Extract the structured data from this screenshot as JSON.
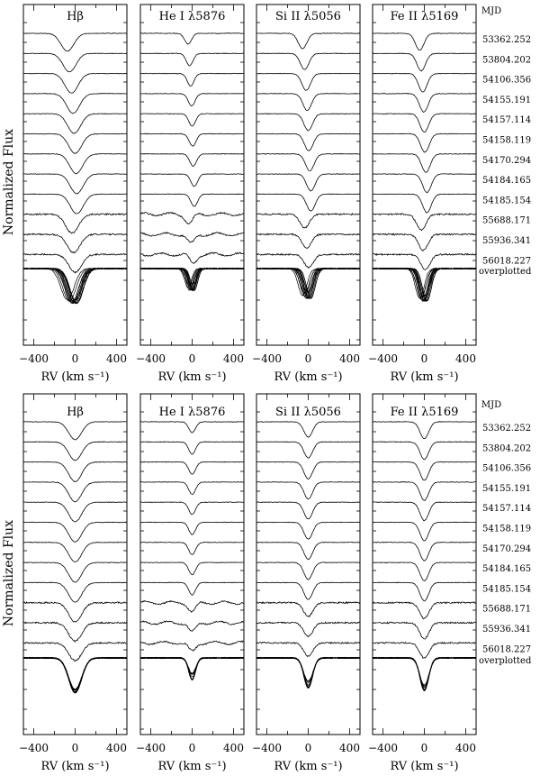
{
  "chart_data": [
    {
      "type": "line",
      "ylabel": "Normalized Flux",
      "mjd_header": "MJD",
      "mjd_labels": [
        "53362.252",
        "53804.202",
        "54106.356",
        "54155.191",
        "54157.114",
        "54158.119",
        "54170.294",
        "54184.165",
        "54185.154",
        "55688.171",
        "55936.341",
        "56018.227",
        "overplotted"
      ],
      "xlim": [
        -500,
        500
      ],
      "xticks": [
        -400,
        0,
        400
      ],
      "xtick_labels": [
        "−400",
        "0",
        "400"
      ],
      "panels": [
        {
          "title": "Hβ",
          "xlabel": "RV (km s⁻¹)",
          "line": "Hbeta",
          "series": [
            {
              "center": -75,
              "depth": 0.58,
              "width": 105
            },
            {
              "center": -55,
              "depth": 0.6,
              "width": 105
            },
            {
              "center": -35,
              "depth": 0.64,
              "width": 105
            },
            {
              "center": -20,
              "depth": 0.64,
              "width": 105
            },
            {
              "center": -10,
              "depth": 0.64,
              "width": 105
            },
            {
              "center": 0,
              "depth": 0.64,
              "width": 105
            },
            {
              "center": 10,
              "depth": 0.64,
              "width": 105
            },
            {
              "center": 15,
              "depth": 0.64,
              "width": 105
            },
            {
              "center": 15,
              "depth": 0.64,
              "width": 105
            },
            {
              "center": -30,
              "depth": 0.62,
              "width": 105
            },
            {
              "center": -15,
              "depth": 0.6,
              "width": 105
            },
            {
              "center": 0,
              "depth": 0.58,
              "width": 105
            }
          ]
        },
        {
          "title": "He I λ5876",
          "xlabel": "RV (km s⁻¹)",
          "line": "HeI",
          "series": [
            {
              "center": -40,
              "depth": 0.35,
              "width": 55
            },
            {
              "center": -25,
              "depth": 0.4,
              "width": 55
            },
            {
              "center": -15,
              "depth": 0.4,
              "width": 55
            },
            {
              "center": -5,
              "depth": 0.4,
              "width": 55
            },
            {
              "center": 0,
              "depth": 0.4,
              "width": 55
            },
            {
              "center": 5,
              "depth": 0.4,
              "width": 55
            },
            {
              "center": 10,
              "depth": 0.4,
              "width": 55
            },
            {
              "center": 20,
              "depth": 0.4,
              "width": 55
            },
            {
              "center": 20,
              "depth": 0.4,
              "width": 55
            },
            {
              "center": -30,
              "depth": 0.3,
              "width": 60
            },
            {
              "center": -10,
              "depth": 0.3,
              "width": 60
            },
            {
              "center": 10,
              "depth": 0.28,
              "width": 60
            }
          ]
        },
        {
          "title": "Si II λ5056",
          "xlabel": "RV (km s⁻¹)",
          "line": "SiII",
          "series": [
            {
              "center": -55,
              "depth": 0.5,
              "width": 70
            },
            {
              "center": -35,
              "depth": 0.52,
              "width": 70
            },
            {
              "center": -20,
              "depth": 0.55,
              "width": 70
            },
            {
              "center": -10,
              "depth": 0.55,
              "width": 70
            },
            {
              "center": 0,
              "depth": 0.55,
              "width": 70
            },
            {
              "center": 5,
              "depth": 0.55,
              "width": 70
            },
            {
              "center": 15,
              "depth": 0.55,
              "width": 70
            },
            {
              "center": 25,
              "depth": 0.55,
              "width": 70
            },
            {
              "center": 25,
              "depth": 0.55,
              "width": 70
            },
            {
              "center": -35,
              "depth": 0.45,
              "width": 75
            },
            {
              "center": -15,
              "depth": 0.45,
              "width": 75
            },
            {
              "center": 5,
              "depth": 0.43,
              "width": 75
            }
          ]
        },
        {
          "title": "Fe II λ5169",
          "xlabel": "RV (km s⁻¹)",
          "line": "FeII",
          "series": [
            {
              "center": -45,
              "depth": 0.55,
              "width": 70
            },
            {
              "center": -30,
              "depth": 0.57,
              "width": 70
            },
            {
              "center": -15,
              "depth": 0.6,
              "width": 70
            },
            {
              "center": -5,
              "depth": 0.6,
              "width": 70
            },
            {
              "center": 0,
              "depth": 0.6,
              "width": 70
            },
            {
              "center": 5,
              "depth": 0.6,
              "width": 70
            },
            {
              "center": 15,
              "depth": 0.6,
              "width": 70
            },
            {
              "center": 25,
              "depth": 0.6,
              "width": 70
            },
            {
              "center": 25,
              "depth": 0.6,
              "width": 70
            },
            {
              "center": -30,
              "depth": 0.52,
              "width": 75
            },
            {
              "center": -10,
              "depth": 0.52,
              "width": 75
            },
            {
              "center": 10,
              "depth": 0.5,
              "width": 75
            }
          ]
        }
      ]
    },
    {
      "type": "line",
      "ylabel": "Normalized Flux",
      "mjd_header": "MJD",
      "mjd_labels": [
        "53362.252",
        "53804.202",
        "54106.356",
        "54155.191",
        "54157.114",
        "54158.119",
        "54170.294",
        "54184.165",
        "54185.154",
        "55688.171",
        "55936.341",
        "56018.227",
        "overplotted"
      ],
      "xlim": [
        -500,
        500
      ],
      "xticks": [
        -400,
        0,
        400
      ],
      "xtick_labels": [
        "−400",
        "0",
        "400"
      ],
      "panels": [
        {
          "title": "Hβ",
          "xlabel": "RV (km s⁻¹)",
          "line": "Hbeta",
          "series": [
            {
              "center": 0,
              "depth": 0.58,
              "width": 105
            },
            {
              "center": 0,
              "depth": 0.6,
              "width": 105
            },
            {
              "center": 0,
              "depth": 0.64,
              "width": 105
            },
            {
              "center": 0,
              "depth": 0.64,
              "width": 105
            },
            {
              "center": 0,
              "depth": 0.64,
              "width": 105
            },
            {
              "center": 0,
              "depth": 0.64,
              "width": 105
            },
            {
              "center": 0,
              "depth": 0.64,
              "width": 105
            },
            {
              "center": 0,
              "depth": 0.64,
              "width": 105
            },
            {
              "center": 0,
              "depth": 0.64,
              "width": 105
            },
            {
              "center": 0,
              "depth": 0.62,
              "width": 105
            },
            {
              "center": 0,
              "depth": 0.6,
              "width": 105
            },
            {
              "center": 0,
              "depth": 0.58,
              "width": 105
            }
          ]
        },
        {
          "title": "He I λ5876",
          "xlabel": "RV (km s⁻¹)",
          "line": "HeI",
          "series": [
            {
              "center": 0,
              "depth": 0.35,
              "width": 55
            },
            {
              "center": 0,
              "depth": 0.4,
              "width": 55
            },
            {
              "center": 0,
              "depth": 0.4,
              "width": 55
            },
            {
              "center": 0,
              "depth": 0.4,
              "width": 55
            },
            {
              "center": 0,
              "depth": 0.4,
              "width": 55
            },
            {
              "center": 0,
              "depth": 0.4,
              "width": 55
            },
            {
              "center": 0,
              "depth": 0.4,
              "width": 55
            },
            {
              "center": 0,
              "depth": 0.4,
              "width": 55
            },
            {
              "center": 0,
              "depth": 0.4,
              "width": 55
            },
            {
              "center": 0,
              "depth": 0.3,
              "width": 60
            },
            {
              "center": 0,
              "depth": 0.3,
              "width": 60
            },
            {
              "center": 0,
              "depth": 0.28,
              "width": 60
            }
          ]
        },
        {
          "title": "Si II λ5056",
          "xlabel": "RV (km s⁻¹)",
          "line": "SiII",
          "series": [
            {
              "center": 0,
              "depth": 0.5,
              "width": 70
            },
            {
              "center": 0,
              "depth": 0.52,
              "width": 70
            },
            {
              "center": 0,
              "depth": 0.55,
              "width": 70
            },
            {
              "center": 0,
              "depth": 0.55,
              "width": 70
            },
            {
              "center": 0,
              "depth": 0.55,
              "width": 70
            },
            {
              "center": 0,
              "depth": 0.55,
              "width": 70
            },
            {
              "center": 0,
              "depth": 0.55,
              "width": 70
            },
            {
              "center": 0,
              "depth": 0.55,
              "width": 70
            },
            {
              "center": 0,
              "depth": 0.55,
              "width": 70
            },
            {
              "center": 0,
              "depth": 0.45,
              "width": 75
            },
            {
              "center": 0,
              "depth": 0.45,
              "width": 75
            },
            {
              "center": 0,
              "depth": 0.43,
              "width": 75
            }
          ]
        },
        {
          "title": "Fe II λ5169",
          "xlabel": "RV (km s⁻¹)",
          "line": "FeII",
          "series": [
            {
              "center": 0,
              "depth": 0.55,
              "width": 70
            },
            {
              "center": 0,
              "depth": 0.57,
              "width": 70
            },
            {
              "center": 0,
              "depth": 0.6,
              "width": 70
            },
            {
              "center": 0,
              "depth": 0.6,
              "width": 70
            },
            {
              "center": 0,
              "depth": 0.6,
              "width": 70
            },
            {
              "center": 0,
              "depth": 0.6,
              "width": 70
            },
            {
              "center": 0,
              "depth": 0.6,
              "width": 70
            },
            {
              "center": 0,
              "depth": 0.6,
              "width": 70
            },
            {
              "center": 0,
              "depth": 0.6,
              "width": 70
            },
            {
              "center": 0,
              "depth": 0.52,
              "width": 75
            },
            {
              "center": 0,
              "depth": 0.52,
              "width": 75
            },
            {
              "center": 0,
              "depth": 0.5,
              "width": 75
            }
          ]
        }
      ]
    }
  ]
}
